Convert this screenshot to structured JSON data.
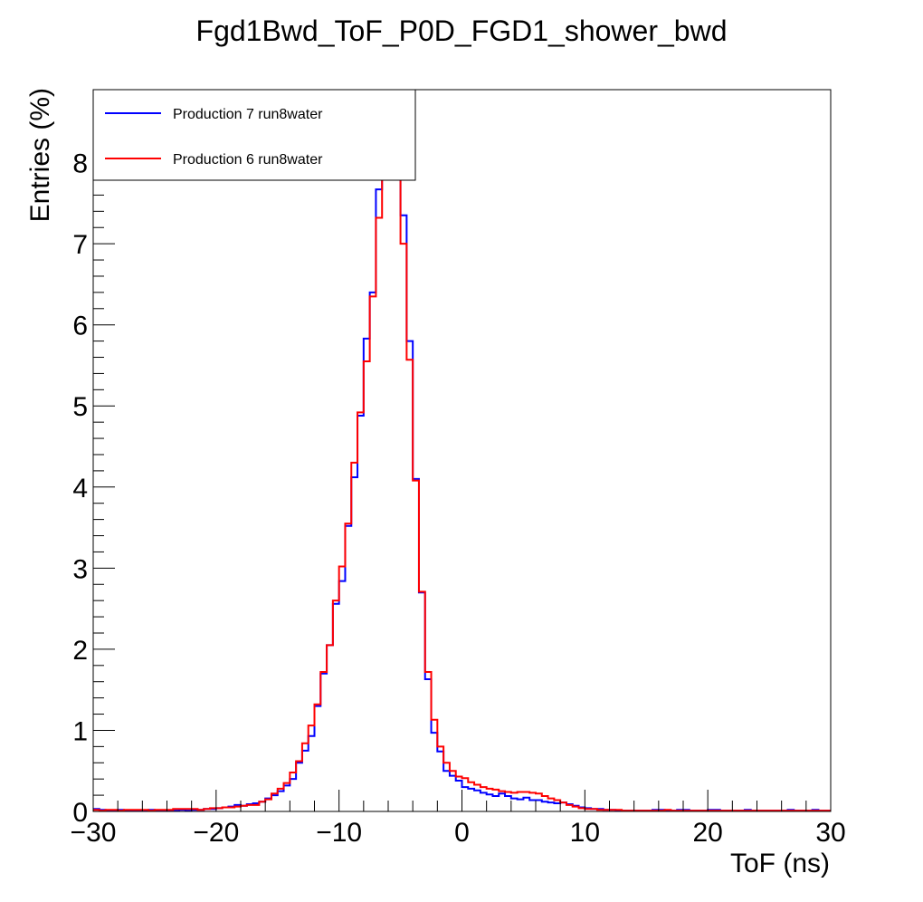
{
  "chart_data": {
    "type": "line",
    "title": "Fgd1Bwd_ToF_P0D_FGD1_shower_bwd",
    "xlabel": "ToF (ns)",
    "ylabel": "Entries (%)",
    "xlim": [
      -30,
      30
    ],
    "ylim": [
      0,
      8.9
    ],
    "x_ticks": [
      -30,
      -20,
      -10,
      0,
      10,
      20,
      30
    ],
    "x_tick_labels": [
      "−30",
      "−20",
      "−10",
      "0",
      "10",
      "20",
      "30"
    ],
    "y_ticks": [
      0,
      1,
      2,
      3,
      4,
      5,
      6,
      7,
      8
    ],
    "y_tick_labels": [
      "0",
      "1",
      "2",
      "3",
      "4",
      "5",
      "6",
      "7",
      "8"
    ],
    "grid": false,
    "legend_position": "top-left",
    "bin_edges": [
      -30,
      -29.5,
      -29,
      -28.5,
      -28,
      -27.5,
      -27,
      -26.5,
      -26,
      -25.5,
      -25,
      -24.5,
      -24,
      -23.5,
      -23,
      -22.5,
      -22,
      -21.5,
      -21,
      -20.5,
      -20,
      -19.5,
      -19,
      -18.5,
      -18,
      -17.5,
      -17,
      -16.5,
      -16,
      -15.5,
      -15,
      -14.5,
      -14,
      -13.5,
      -13,
      -12.5,
      -12,
      -11.5,
      -11,
      -10.5,
      -10,
      -9.5,
      -9,
      -8.5,
      -8,
      -7.5,
      -7,
      -6.5,
      -6,
      -5.5,
      -5,
      -4.5,
      -4,
      -3.5,
      -3,
      -2.5,
      -2,
      -1.5,
      -1,
      -0.5,
      0,
      0.5,
      1,
      1.5,
      2,
      2.5,
      3,
      3.5,
      4,
      4.5,
      5,
      5.5,
      6,
      6.5,
      7,
      7.5,
      8,
      8.5,
      9,
      9.5,
      10,
      10.5,
      11,
      11.5,
      12,
      12.5,
      13,
      13.5,
      14,
      14.5,
      15,
      15.5,
      16,
      16.5,
      17,
      17.5,
      18,
      18.5,
      19,
      19.5,
      20,
      20.5,
      21,
      21.5,
      22,
      22.5,
      23,
      23.5,
      24,
      24.5,
      25,
      25.5,
      26,
      26.5,
      27,
      27.5,
      28,
      28.5,
      29,
      29.5,
      30
    ],
    "series": [
      {
        "name": "Production 7 run8water",
        "color": "#0000ff",
        "values": [
          0.03,
          0.02,
          0.01,
          0.01,
          0.02,
          0.01,
          0.01,
          0.01,
          0.01,
          0.02,
          0.01,
          0.01,
          0.01,
          0.01,
          0.02,
          0.01,
          0.02,
          0.02,
          0.03,
          0.03,
          0.04,
          0.05,
          0.06,
          0.08,
          0.07,
          0.09,
          0.1,
          0.12,
          0.16,
          0.2,
          0.25,
          0.32,
          0.4,
          0.6,
          0.75,
          0.93,
          1.3,
          1.7,
          2.05,
          2.56,
          2.84,
          3.52,
          4.12,
          4.88,
          5.83,
          6.4,
          7.67,
          8.6,
          9.4,
          8.7,
          7.35,
          5.8,
          4.1,
          2.7,
          1.63,
          0.97,
          0.74,
          0.5,
          0.44,
          0.38,
          0.3,
          0.28,
          0.26,
          0.23,
          0.21,
          0.19,
          0.22,
          0.19,
          0.16,
          0.15,
          0.17,
          0.14,
          0.14,
          0.12,
          0.11,
          0.1,
          0.11,
          0.09,
          0.07,
          0.05,
          0.04,
          0.03,
          0.03,
          0.02,
          0.02,
          0.01,
          0.01,
          0.01,
          0.01,
          0.01,
          0.01,
          0.02,
          0.02,
          0.01,
          0.01,
          0.02,
          0.02,
          0.01,
          0.01,
          0.01,
          0.02,
          0.02,
          0.01,
          0.01,
          0.01,
          0.01,
          0.02,
          0.01,
          0.01,
          0.01,
          0.01,
          0.01,
          0.01,
          0.02,
          0.01,
          0.01,
          0.01,
          0.02,
          0.01,
          0.01
        ]
      },
      {
        "name": "Production 6 run8water",
        "color": "#ff0000",
        "values": [
          0.02,
          0.01,
          0.02,
          0.02,
          0.01,
          0.02,
          0.02,
          0.02,
          0.02,
          0.01,
          0.02,
          0.02,
          0.02,
          0.03,
          0.03,
          0.03,
          0.03,
          0.02,
          0.03,
          0.04,
          0.04,
          0.05,
          0.05,
          0.06,
          0.07,
          0.08,
          0.08,
          0.12,
          0.15,
          0.22,
          0.28,
          0.35,
          0.48,
          0.62,
          0.84,
          1.06,
          1.32,
          1.72,
          2.05,
          2.6,
          3.02,
          3.55,
          4.3,
          4.92,
          5.55,
          6.35,
          7.32,
          8.2,
          9.0,
          8.4,
          7.0,
          5.57,
          4.08,
          2.71,
          1.72,
          1.13,
          0.8,
          0.6,
          0.5,
          0.43,
          0.41,
          0.36,
          0.33,
          0.3,
          0.28,
          0.27,
          0.25,
          0.24,
          0.23,
          0.24,
          0.24,
          0.23,
          0.22,
          0.19,
          0.16,
          0.14,
          0.11,
          0.08,
          0.06,
          0.04,
          0.03,
          0.03,
          0.02,
          0.02,
          0.02,
          0.02,
          0.01,
          0.01,
          0.01,
          0.01,
          0.01,
          0.01,
          0.01,
          0.02,
          0.01,
          0.01,
          0.01,
          0.01,
          0.01,
          0.01,
          0.01,
          0.01,
          0.01,
          0.01,
          0.01,
          0.01,
          0.01,
          0.01,
          0.01,
          0.01,
          0.01,
          0.01,
          0.01,
          0.01,
          0.01,
          0.01,
          0.01,
          0.01,
          0.01,
          0.01
        ]
      }
    ]
  }
}
